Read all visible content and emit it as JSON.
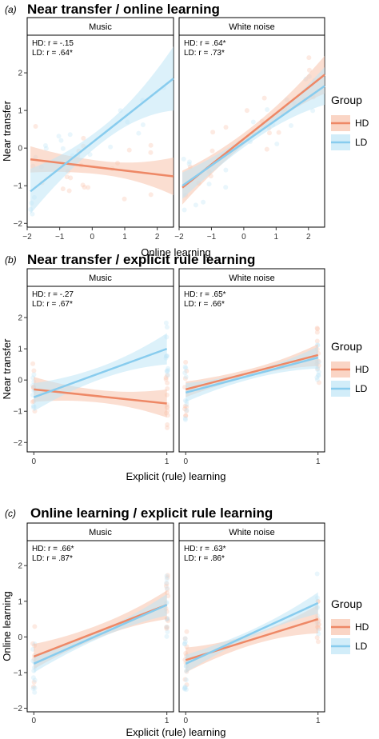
{
  "colors": {
    "HD": "#EE8866",
    "LD": "#88CCEE",
    "HD_band": "#F8C3AC",
    "LD_band": "#BFE5F6"
  },
  "legend": {
    "title": "Group",
    "items": [
      "HD",
      "LD"
    ]
  },
  "chart_data": [
    {
      "type": "scatter",
      "panel_label": "(a)",
      "title": "Near transfer / online learning",
      "xlabel": "Online learning",
      "ylabel": "Near transfer",
      "xlim": [
        -2,
        2.5
      ],
      "ylim": [
        -2.1,
        3
      ],
      "xticks": [
        "−2",
        "−1",
        "0",
        "1",
        "2"
      ],
      "yticks": [
        "−2",
        "−1",
        "0",
        "1",
        "2"
      ],
      "facets": [
        {
          "name": "Music",
          "stats": [
            "HD: r = -.15",
            "LD: r = .64*"
          ],
          "series": [
            {
              "name": "HD",
              "line": [
                [
                  -1.9,
                  -0.3
                ],
                [
                  2.5,
                  -0.75
                ]
              ],
              "band_halfwidth": [
                0.35,
                0.18,
                0.5
              ]
            },
            {
              "name": "LD",
              "line": [
                [
                  -1.9,
                  -1.15
                ],
                [
                  2.5,
                  1.85
                ]
              ],
              "band_halfwidth": [
                0.6,
                0.2,
                0.85
              ]
            }
          ]
        },
        {
          "name": "White noise",
          "stats": [
            "HD: r = .64*",
            "LD: r = .73*"
          ],
          "series": [
            {
              "name": "HD",
              "line": [
                [
                  -1.9,
                  -1.05
                ],
                [
                  2.5,
                  1.95
                ]
              ],
              "band_halfwidth": [
                0.45,
                0.15,
                0.5
              ]
            },
            {
              "name": "LD",
              "line": [
                [
                  -1.9,
                  -1.0
                ],
                [
                  2.5,
                  1.65
                ]
              ],
              "band_halfwidth": [
                0.35,
                0.12,
                0.5
              ]
            }
          ]
        }
      ]
    },
    {
      "type": "scatter",
      "panel_label": "(b)",
      "title": "Near transfer / explicit rule learning",
      "xlabel": "Explicit (rule) learning",
      "ylabel": "Near transfer",
      "xlim": [
        -0.05,
        1.05
      ],
      "ylim": [
        -2.3,
        3.0
      ],
      "xticks": [
        "0",
        "1"
      ],
      "yticks": [
        "−2",
        "−1",
        "0",
        "1",
        "2"
      ],
      "facets": [
        {
          "name": "Music",
          "stats": [
            "HD: r = -.27",
            "LD: r = .67*"
          ],
          "series": [
            {
              "name": "HD",
              "line": [
                [
                  0,
                  -0.3
                ],
                [
                  1,
                  -0.75
                ]
              ],
              "band_halfwidth": [
                0.4,
                0.2,
                0.45
              ]
            },
            {
              "name": "LD",
              "line": [
                [
                  0,
                  -0.55
                ],
                [
                  1,
                  1.0
                ]
              ],
              "band_halfwidth": [
                0.45,
                0.2,
                0.5
              ]
            }
          ]
        },
        {
          "name": "White noise",
          "stats": [
            "HD: r = .65*",
            "LD: r = .66*"
          ],
          "series": [
            {
              "name": "HD",
              "line": [
                [
                  0,
                  -0.3
                ],
                [
                  1,
                  0.8
                ]
              ],
              "band_halfwidth": [
                0.25,
                0.12,
                0.35
              ]
            },
            {
              "name": "LD",
              "line": [
                [
                  0,
                  -0.4
                ],
                [
                  1,
                  0.72
                ]
              ],
              "band_halfwidth": [
                0.3,
                0.12,
                0.35
              ]
            }
          ]
        }
      ]
    },
    {
      "type": "scatter",
      "panel_label": "(c)",
      "title": "Online learning / explicit rule learning",
      "xlabel": "Explicit (rule) learning",
      "ylabel": "Online learning",
      "xlim": [
        -0.05,
        1.05
      ],
      "ylim": [
        -2.1,
        2.7
      ],
      "xticks": [
        "0",
        "1"
      ],
      "yticks": [
        "−2",
        "−1",
        "0",
        "1",
        "2"
      ],
      "facets": [
        {
          "name": "Music",
          "stats": [
            "HD: r = .66*",
            "LD: r = .87*"
          ],
          "series": [
            {
              "name": "HD",
              "line": [
                [
                  0,
                  -0.55
                ],
                [
                  1,
                  0.9
                ]
              ],
              "band_halfwidth": [
                0.35,
                0.18,
                0.4
              ]
            },
            {
              "name": "LD",
              "line": [
                [
                  0,
                  -0.75
                ],
                [
                  1,
                  0.9
                ]
              ],
              "band_halfwidth": [
                0.25,
                0.1,
                0.3
              ]
            }
          ]
        },
        {
          "name": "White noise",
          "stats": [
            "HD: r = .63*",
            "LD: r = .86*"
          ],
          "series": [
            {
              "name": "HD",
              "line": [
                [
                  0,
                  -0.65
                ],
                [
                  1,
                  0.5
                ]
              ],
              "band_halfwidth": [
                0.35,
                0.15,
                0.4
              ]
            },
            {
              "name": "LD",
              "line": [
                [
                  0,
                  -0.75
                ],
                [
                  1,
                  0.95
                ]
              ],
              "band_halfwidth": [
                0.25,
                0.1,
                0.3
              ]
            }
          ]
        }
      ]
    }
  ]
}
